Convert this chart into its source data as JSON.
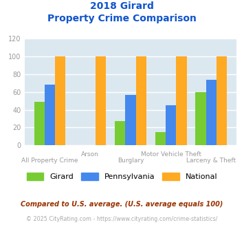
{
  "title_line1": "2018 Girard",
  "title_line2": "Property Crime Comparison",
  "categories": [
    "All Property Crime",
    "Arson",
    "Burglary",
    "Motor Vehicle Theft",
    "Larceny & Theft"
  ],
  "girard": [
    49,
    0,
    27,
    15,
    60
  ],
  "pennsylvania": [
    68,
    0,
    57,
    45,
    74
  ],
  "national": [
    100,
    100,
    100,
    100,
    100
  ],
  "color_girard": "#77cc33",
  "color_pennsylvania": "#4488ee",
  "color_national": "#ffaa22",
  "ylim": [
    0,
    120
  ],
  "yticks": [
    0,
    20,
    40,
    60,
    80,
    100,
    120
  ],
  "background_color": "#dce8f0",
  "grid_color": "#ffffff",
  "legend_labels": [
    "Girard",
    "Pennsylvania",
    "National"
  ],
  "footnote1": "Compared to U.S. average. (U.S. average equals 100)",
  "footnote2": "© 2025 CityRating.com - https://www.cityrating.com/crime-statistics/",
  "title_color": "#1155cc",
  "footnote1_color": "#993300",
  "footnote2_color": "#aaaaaa",
  "tick_label_color": "#999999",
  "label_stagger_low": [
    0,
    2,
    4
  ],
  "label_stagger_high": [
    1,
    3
  ]
}
